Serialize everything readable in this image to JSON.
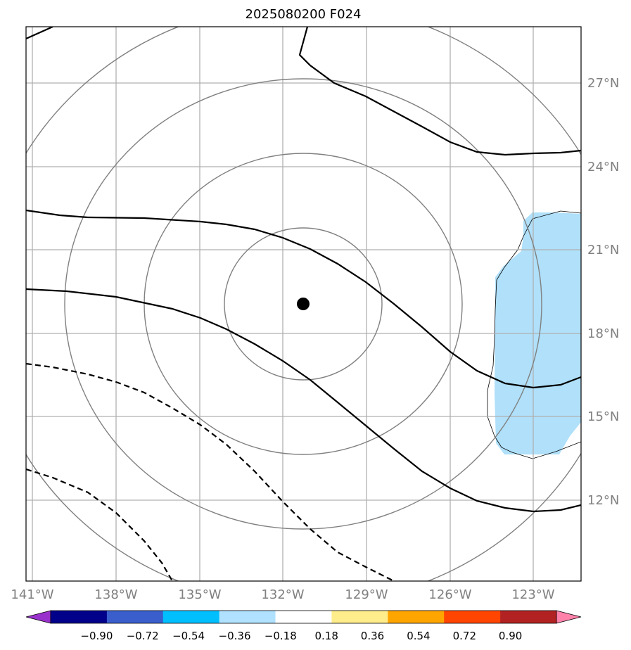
{
  "title": "2025080200 F024",
  "map": {
    "lon_range": [
      -141.3,
      -121.4
    ],
    "lat_range": [
      8.3,
      29.3
    ],
    "lat_ticks": [
      {
        "value": 27,
        "label": "27°N"
      },
      {
        "value": 24,
        "label": "24°N"
      },
      {
        "value": 21,
        "label": "21°N"
      },
      {
        "value": 18,
        "label": "18°N"
      },
      {
        "value": 15,
        "label": "15°N"
      },
      {
        "value": 12,
        "label": "12°N"
      }
    ],
    "lon_ticks": [
      {
        "value": -141,
        "label": "141°W"
      },
      {
        "value": -138,
        "label": "138°W"
      },
      {
        "value": -135,
        "label": "135°W"
      },
      {
        "value": -132,
        "label": "132°W"
      },
      {
        "value": -129,
        "label": "129°W"
      },
      {
        "value": -126,
        "label": "126°W"
      },
      {
        "value": -123,
        "label": "123°W"
      }
    ],
    "grid": true,
    "center_marker": {
      "lon": -131.3,
      "lat": 19.0
    },
    "shaded_region_color": "#b0e0fa"
  },
  "colorbar": {
    "colors": [
      "#9932cc",
      "#00008b",
      "#3a5fcd",
      "#00bfff",
      "#b0e2ff",
      "#ffffff",
      "#ffec8b",
      "#ffa500",
      "#ff4500",
      "#b22222",
      "#ff82ab"
    ],
    "tick_labels": [
      "−0.90",
      "−0.72",
      "−0.54",
      "−0.36",
      "−0.18",
      "0.18",
      "0.36",
      "0.54",
      "0.72",
      "0.90"
    ]
  }
}
